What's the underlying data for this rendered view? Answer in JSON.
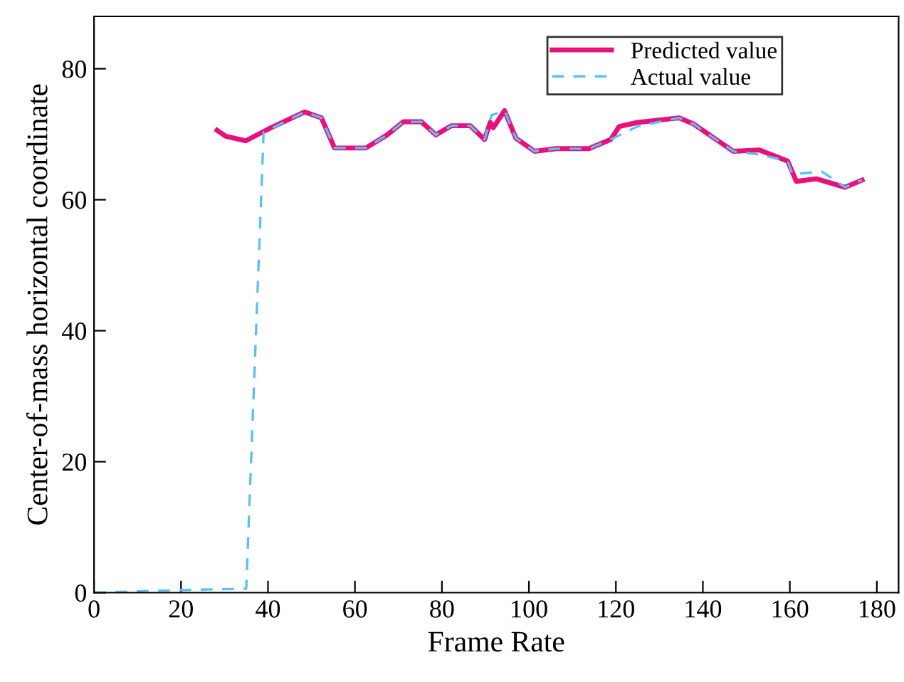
{
  "chart_data": {
    "type": "line",
    "xlabel": "Frame Rate",
    "ylabel": "Center-of-mass horizontal coordinate",
    "xlim": [
      0,
      185
    ],
    "ylim": [
      0,
      88
    ],
    "xticks": [
      0,
      20,
      40,
      60,
      80,
      100,
      120,
      140,
      160,
      180
    ],
    "yticks": [
      0,
      20,
      40,
      60,
      80
    ],
    "grid": false,
    "legend": "top right",
    "series": [
      {
        "name": "Predicted value",
        "color": "#e8107a",
        "line_style": "solid",
        "x": [
          28.3,
          30.3,
          34.9,
          40.1,
          48.4,
          52.3,
          55.3,
          62.5,
          67.4,
          71.1,
          75.3,
          78.6,
          82.2,
          86.5,
          89.8,
          91.1,
          91.8,
          94.4,
          97.0,
          101.3,
          106.3,
          113.8,
          118.8,
          120.8,
          125.0,
          134.5,
          137.8,
          147.0,
          153.0,
          159.5,
          161.5,
          166.1,
          172.7,
          176.6
        ],
        "values": [
          70.6,
          69.7,
          69.0,
          70.8,
          73.4,
          72.5,
          67.9,
          67.9,
          69.9,
          71.9,
          71.9,
          69.9,
          71.3,
          71.3,
          69.2,
          71.8,
          71.0,
          73.6,
          69.4,
          67.4,
          67.8,
          67.8,
          69.2,
          71.2,
          71.8,
          72.5,
          71.6,
          67.4,
          67.6,
          65.9,
          62.8,
          63.2,
          61.9,
          63.0
        ]
      },
      {
        "name": "Actual value",
        "color": "#5bc0f5",
        "line_style": "dashed",
        "x": [
          0,
          20,
          35,
          39,
          48.4,
          52.3,
          55.3,
          62.5,
          67.4,
          71.1,
          75.3,
          78.6,
          82.2,
          86.5,
          89.8,
          91.4,
          94.4,
          97.0,
          101.3,
          106.3,
          113.8,
          118.8,
          125.0,
          134.5,
          137.8,
          147.0,
          153.0,
          159.5,
          160.6,
          167.4,
          172.7,
          176.6
        ],
        "values": [
          0,
          0.4,
          0.6,
          70.3,
          73.4,
          72.5,
          67.9,
          67.9,
          69.9,
          71.9,
          71.9,
          69.9,
          71.3,
          71.3,
          69.2,
          72.9,
          73.6,
          69.4,
          67.4,
          67.8,
          67.8,
          69.2,
          71.2,
          72.5,
          71.6,
          67.4,
          66.9,
          65.9,
          63.9,
          64.3,
          61.9,
          63.0
        ]
      }
    ]
  }
}
